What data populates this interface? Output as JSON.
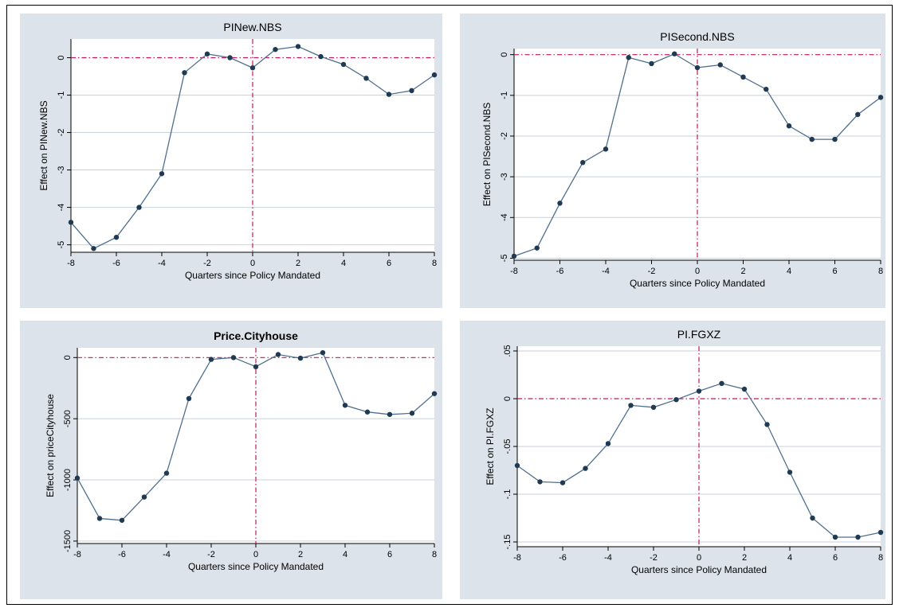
{
  "chart_data": [
    {
      "type": "line",
      "title": "PINew.NBS",
      "xlabel": "Quarters since Policy Mandated",
      "ylabel": "Effect on PINew.NBS",
      "xlim": [
        -8,
        8
      ],
      "ylim": [
        -5.2,
        0.5
      ],
      "x_ticks": [
        -8,
        -6,
        -4,
        -2,
        0,
        2,
        4,
        6,
        8
      ],
      "x_tick_labels": [
        "-8",
        "-6",
        "-4",
        "-2",
        "0",
        "2",
        "4",
        "6",
        "8"
      ],
      "y_ticks": [
        0,
        -1,
        -2,
        -3,
        -4,
        -5
      ],
      "y_tick_labels": [
        "0",
        "-1",
        "-2",
        "-3",
        "-4",
        "-5"
      ],
      "x": [
        -8,
        -7,
        -6,
        -5,
        -4,
        -3,
        -2,
        -1,
        0,
        1,
        2,
        3,
        4,
        5,
        6,
        7,
        8
      ],
      "values": [
        -4.4,
        -5.1,
        -4.8,
        -4.0,
        -3.1,
        -0.4,
        0.1,
        0.0,
        -0.27,
        0.22,
        0.3,
        0.03,
        -0.18,
        -0.55,
        -0.98,
        -0.88,
        -0.46
      ],
      "hline": 0,
      "vline": 0,
      "grid": true,
      "colors": {
        "line": "#4f6f8f",
        "marker": "#1f3a52",
        "ref": "#c2185b",
        "panel_bg": "#dde3ea",
        "grid": "#c9d2dc"
      }
    },
    {
      "type": "line",
      "title": "PISecond.NBS",
      "xlabel": "Quarters since Policy Mandated",
      "ylabel": "Effect on PISecond.NBS",
      "xlim": [
        -8,
        8
      ],
      "ylim": [
        -5.05,
        0.15
      ],
      "x_ticks": [
        -8,
        -6,
        -4,
        -2,
        0,
        2,
        4,
        6,
        8
      ],
      "x_tick_labels": [
        "-8",
        "-6",
        "-4",
        "-2",
        "0",
        "2",
        "4",
        "6",
        "8"
      ],
      "y_ticks": [
        0,
        -1,
        -2,
        -3,
        -4,
        -5
      ],
      "y_tick_labels": [
        "0",
        "-1",
        "-2",
        "-3",
        "-4",
        "-5"
      ],
      "x": [
        -8,
        -7,
        -6,
        -5,
        -4,
        -3,
        -2,
        -1,
        0,
        1,
        2,
        3,
        4,
        5,
        6,
        7,
        8
      ],
      "values": [
        -4.95,
        -4.75,
        -3.65,
        -2.65,
        -2.32,
        -0.07,
        -0.22,
        0.02,
        -0.32,
        -0.25,
        -0.55,
        -0.85,
        -1.75,
        -2.08,
        -2.08,
        -1.47,
        -1.05
      ],
      "hline": 0,
      "vline": 0,
      "grid": true,
      "colors": {
        "line": "#4f6f8f",
        "marker": "#1f3a52",
        "ref": "#c2185b",
        "panel_bg": "#dde3ea",
        "grid": "#c9d2dc"
      }
    },
    {
      "type": "line",
      "title": "Price.Cityhouse",
      "xlabel": "Quarters since Policy Mandated",
      "ylabel": "Effect on priceCityhouse",
      "xlim": [
        -8,
        8
      ],
      "ylim": [
        -1520,
        80
      ],
      "x_ticks": [
        -8,
        -6,
        -4,
        -2,
        0,
        2,
        4,
        6,
        8
      ],
      "x_tick_labels": [
        "-8",
        "-6",
        "-4",
        "-2",
        "0",
        "2",
        "4",
        "6",
        "8"
      ],
      "y_ticks": [
        0,
        -500,
        -1000,
        -1500
      ],
      "y_tick_labels": [
        "0",
        "-500",
        "-1000",
        "-1500"
      ],
      "x": [
        -8,
        -7,
        -6,
        -5,
        -4,
        -3,
        -2,
        -1,
        0,
        1,
        2,
        3,
        4,
        5,
        6,
        7,
        8
      ],
      "values": [
        -985,
        -1315,
        -1330,
        -1140,
        -945,
        -335,
        -15,
        0,
        -75,
        25,
        -5,
        40,
        -390,
        -445,
        -465,
        -455,
        -295
      ],
      "hline": 0,
      "vline": 0,
      "grid": true,
      "colors": {
        "line": "#4f6f8f",
        "marker": "#1f3a52",
        "ref": "#c2185b",
        "panel_bg": "#dde3ea",
        "grid": "#c9d2dc"
      }
    },
    {
      "type": "line",
      "title": "PI.FGXZ",
      "xlabel": "Quarters since Policy Mandated",
      "ylabel": "Effect on PI.FGXZ",
      "xlim": [
        -8,
        8
      ],
      "ylim": [
        -0.155,
        0.055
      ],
      "x_ticks": [
        -8,
        -6,
        -4,
        -2,
        0,
        2,
        4,
        6,
        8
      ],
      "x_tick_labels": [
        "-8",
        "-6",
        "-4",
        "-2",
        "0",
        "2",
        "4",
        "6",
        "8"
      ],
      "y_ticks": [
        0.05,
        0,
        -0.05,
        -0.1,
        -0.15
      ],
      "y_tick_labels": [
        ".05",
        "0",
        "-.05",
        "-.1",
        "-.15"
      ],
      "x": [
        -8,
        -7,
        -6,
        -5,
        -4,
        -3,
        -2,
        -1,
        0,
        1,
        2,
        3,
        4,
        5,
        6,
        7,
        8
      ],
      "values": [
        -0.07,
        -0.087,
        -0.088,
        -0.073,
        -0.047,
        -0.007,
        -0.009,
        -0.001,
        0.008,
        0.016,
        0.01,
        -0.027,
        -0.077,
        -0.125,
        -0.145,
        -0.145,
        -0.14
      ],
      "hline": 0,
      "vline": 0,
      "grid": true,
      "colors": {
        "line": "#4f6f8f",
        "marker": "#1f3a52",
        "ref": "#c2185b",
        "panel_bg": "#dde3ea",
        "grid": "#c9d2dc"
      }
    }
  ]
}
